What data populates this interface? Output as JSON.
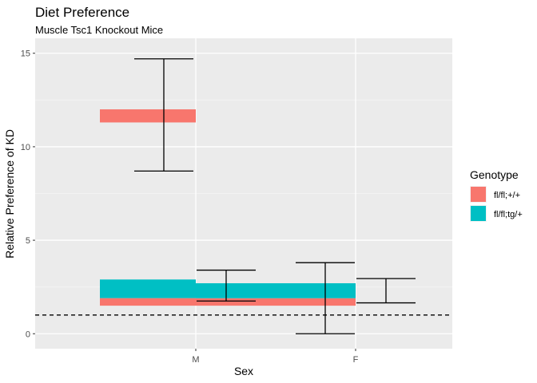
{
  "chart_data": {
    "type": "bar",
    "title": "Diet Preference",
    "subtitle": "Muscle Tsc1 Knockout Mice",
    "xlabel": "Sex",
    "ylabel": "Relative Preference of KD",
    "categories": [
      "M",
      "F"
    ],
    "ylim": [
      -0.8,
      15.8
    ],
    "yticks": [
      0,
      5,
      10,
      15
    ],
    "grid": true,
    "reference_line": {
      "y": 1,
      "style": "dashed"
    },
    "legend": {
      "title": "Genotype",
      "position": "right"
    },
    "series": [
      {
        "name": "fl/fl;+/+",
        "color": "#F8766D",
        "values": [
          12.0,
          1.9
        ]
      },
      {
        "name": "fl/fl;tg/+",
        "color": "#00BFC4",
        "values": [
          2.9,
          2.7
        ]
      }
    ],
    "bands": [
      {
        "series": 0,
        "x_from": 0.4,
        "x_to": 1.0,
        "low": 11.3,
        "high": 12.0
      },
      {
        "series": 1,
        "x_from": 0.4,
        "x_to": 1.0,
        "low": 1.9,
        "high": 2.9
      },
      {
        "series": 0,
        "x_from": 0.4,
        "x_to": 2.0,
        "low": 1.5,
        "high": 1.9
      },
      {
        "series": 1,
        "x_from": 1.0,
        "x_to": 2.0,
        "low": 1.9,
        "high": 2.7
      }
    ],
    "error_bars": [
      {
        "x": 0.8,
        "low": 8.7,
        "high": 14.7
      },
      {
        "x": 1.19,
        "low": 1.75,
        "high": 3.4
      },
      {
        "x": 1.81,
        "low": 0.0,
        "high": 3.8
      },
      {
        "x": 2.19,
        "low": 1.65,
        "high": 2.95
      }
    ]
  }
}
